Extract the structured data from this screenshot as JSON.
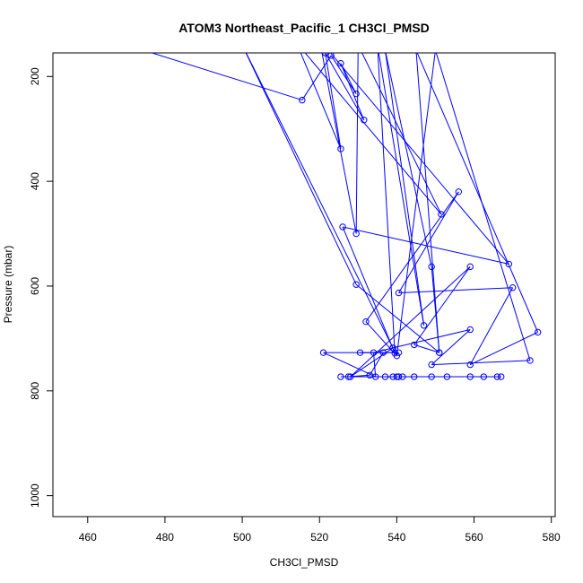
{
  "chart_data": {
    "type": "line",
    "title": "ATOM3 Northeast_Pacific_1 CH3Cl_PMSD",
    "xlabel": "CH3Cl_PMSD",
    "ylabel": "Pressure (mbar)",
    "xlim": [
      451,
      581
    ],
    "ylim": [
      1040,
      155
    ],
    "y_reversed": true,
    "x_ticks": [
      460,
      480,
      500,
      520,
      540,
      560,
      580
    ],
    "y_ticks": [
      200,
      400,
      600,
      800,
      1000
    ],
    "grid": false,
    "series": [
      {
        "color": "#0000ff",
        "marker": "open-circle",
        "points": [
          [
            440,
            70
          ],
          [
            515.5,
            245
          ],
          [
            523,
            160
          ],
          [
            529.5,
            233
          ],
          [
            525.5,
            175
          ],
          [
            531.5,
            283
          ],
          [
            521.5,
            155
          ],
          [
            525.5,
            338
          ],
          [
            514,
            135
          ],
          [
            551.5,
            463
          ],
          [
            530,
            140
          ],
          [
            529.5,
            500
          ],
          [
            520,
            130
          ],
          [
            569,
            558
          ],
          [
            526,
            487
          ],
          [
            539.5,
            728
          ],
          [
            535,
            140
          ],
          [
            547,
            675
          ],
          [
            537,
            150
          ],
          [
            549,
            563
          ],
          [
            551,
            727
          ],
          [
            545,
            150
          ],
          [
            576.5,
            688
          ],
          [
            559,
            750
          ],
          [
            570,
            603
          ],
          [
            540.5,
            613
          ],
          [
            556,
            420
          ],
          [
            532,
            668
          ],
          [
            540,
            733
          ],
          [
            550,
            150
          ],
          [
            574.5,
            742
          ],
          [
            549,
            750
          ],
          [
            559,
            683
          ],
          [
            539,
            718
          ],
          [
            528,
            773
          ],
          [
            559,
            563
          ],
          [
            544.5,
            712
          ],
          [
            551,
            727
          ],
          [
            529.5,
            597
          ],
          [
            500,
            140
          ],
          [
            539,
            718
          ],
          [
            534,
            727
          ],
          [
            534.5,
            773
          ],
          [
            521,
            727
          ],
          [
            540.5,
            727
          ],
          [
            530.5,
            727
          ],
          [
            536.5,
            727
          ],
          [
            533,
            770
          ],
          [
            527.5,
            773
          ],
          [
            540.5,
            773
          ],
          [
            525.5,
            773
          ],
          [
            541.5,
            773
          ],
          [
            544.5,
            773
          ],
          [
            549,
            773
          ],
          [
            553,
            773
          ],
          [
            559,
            773
          ],
          [
            562.5,
            773
          ],
          [
            567,
            773
          ],
          [
            566,
            773
          ],
          [
            540,
            773
          ],
          [
            537,
            773
          ],
          [
            539,
            773
          ]
        ]
      }
    ]
  }
}
